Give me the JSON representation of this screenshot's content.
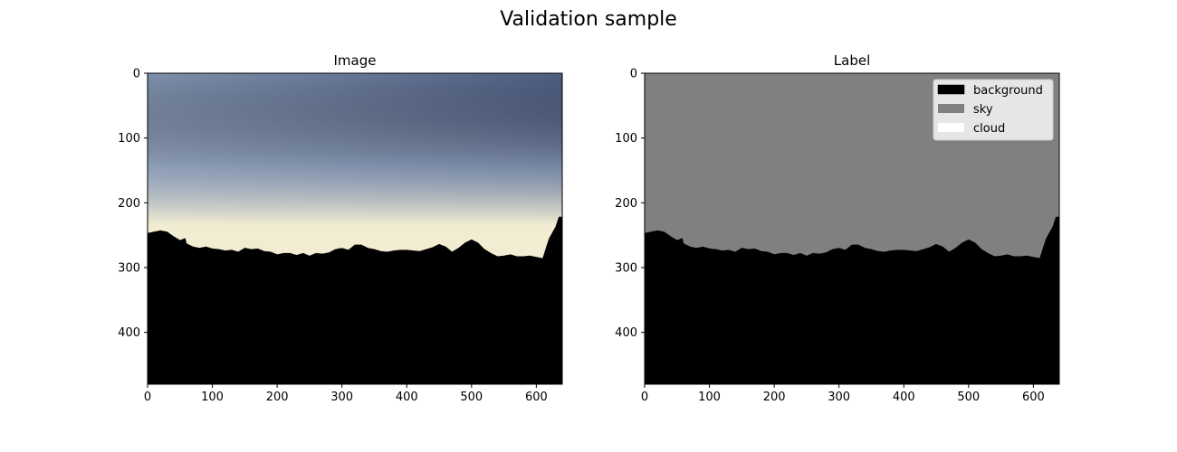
{
  "figure": {
    "title": "Validation sample"
  },
  "chart_data": [
    {
      "type": "heatmap",
      "title": "Image",
      "content": "photo",
      "x_ticks": [
        0,
        100,
        200,
        300,
        400,
        500,
        600
      ],
      "y_ticks": [
        0,
        100,
        200,
        300,
        400
      ],
      "xlim": [
        0,
        640
      ],
      "ylim": [
        480,
        0
      ],
      "colors": {
        "sky_top_left": "#7f90ac",
        "sky_top_right": "#4f5e82",
        "sky_mid": "#9aaac0",
        "horizon_glow": "#f2ecd2",
        "ground": "#000000"
      },
      "skyline_y": [
        [
          0,
          247
        ],
        [
          10,
          245
        ],
        [
          20,
          243
        ],
        [
          30,
          245
        ],
        [
          40,
          252
        ],
        [
          50,
          258
        ],
        [
          58,
          255
        ],
        [
          60,
          263
        ],
        [
          70,
          268
        ],
        [
          80,
          270
        ],
        [
          90,
          268
        ],
        [
          100,
          271
        ],
        [
          110,
          272
        ],
        [
          120,
          274
        ],
        [
          130,
          273
        ],
        [
          140,
          276
        ],
        [
          150,
          270
        ],
        [
          160,
          272
        ],
        [
          170,
          271
        ],
        [
          180,
          275
        ],
        [
          190,
          276
        ],
        [
          200,
          280
        ],
        [
          210,
          278
        ],
        [
          220,
          278
        ],
        [
          230,
          281
        ],
        [
          240,
          278
        ],
        [
          250,
          282
        ],
        [
          260,
          278
        ],
        [
          270,
          279
        ],
        [
          280,
          277
        ],
        [
          290,
          272
        ],
        [
          300,
          270
        ],
        [
          310,
          273
        ],
        [
          320,
          265
        ],
        [
          330,
          265
        ],
        [
          340,
          270
        ],
        [
          350,
          272
        ],
        [
          360,
          275
        ],
        [
          370,
          276
        ],
        [
          380,
          274
        ],
        [
          390,
          273
        ],
        [
          400,
          273
        ],
        [
          410,
          274
        ],
        [
          420,
          275
        ],
        [
          430,
          272
        ],
        [
          440,
          269
        ],
        [
          450,
          264
        ],
        [
          460,
          268
        ],
        [
          470,
          276
        ],
        [
          480,
          270
        ],
        [
          490,
          262
        ],
        [
          500,
          257
        ],
        [
          510,
          262
        ],
        [
          520,
          272
        ],
        [
          530,
          278
        ],
        [
          540,
          283
        ],
        [
          550,
          282
        ],
        [
          560,
          280
        ],
        [
          570,
          283
        ],
        [
          580,
          283
        ],
        [
          590,
          282
        ],
        [
          600,
          284
        ],
        [
          610,
          286
        ],
        [
          615,
          270
        ],
        [
          620,
          255
        ],
        [
          625,
          246
        ],
        [
          630,
          237
        ],
        [
          635,
          222
        ],
        [
          640,
          222
        ]
      ]
    },
    {
      "type": "heatmap",
      "title": "Label",
      "content": "segmentation",
      "x_ticks": [
        0,
        100,
        200,
        300,
        400,
        500,
        600
      ],
      "y_ticks": [
        0,
        100,
        200,
        300,
        400
      ],
      "xlim": [
        0,
        640
      ],
      "ylim": [
        480,
        0
      ],
      "classes": [
        {
          "name": "background",
          "color": "#000000"
        },
        {
          "name": "sky",
          "color": "#808080"
        },
        {
          "name": "cloud",
          "color": "#ffffff"
        }
      ],
      "legend_position": "top-right",
      "skyline_y": [
        [
          0,
          247
        ],
        [
          10,
          245
        ],
        [
          20,
          243
        ],
        [
          30,
          245
        ],
        [
          40,
          252
        ],
        [
          50,
          258
        ],
        [
          58,
          255
        ],
        [
          60,
          263
        ],
        [
          70,
          268
        ],
        [
          80,
          270
        ],
        [
          90,
          268
        ],
        [
          100,
          271
        ],
        [
          110,
          272
        ],
        [
          120,
          274
        ],
        [
          130,
          273
        ],
        [
          140,
          276
        ],
        [
          150,
          270
        ],
        [
          160,
          272
        ],
        [
          170,
          271
        ],
        [
          180,
          275
        ],
        [
          190,
          276
        ],
        [
          200,
          280
        ],
        [
          210,
          278
        ],
        [
          220,
          278
        ],
        [
          230,
          281
        ],
        [
          240,
          278
        ],
        [
          250,
          282
        ],
        [
          260,
          278
        ],
        [
          270,
          279
        ],
        [
          280,
          277
        ],
        [
          290,
          272
        ],
        [
          300,
          270
        ],
        [
          310,
          273
        ],
        [
          320,
          265
        ],
        [
          330,
          265
        ],
        [
          340,
          270
        ],
        [
          350,
          272
        ],
        [
          360,
          275
        ],
        [
          370,
          276
        ],
        [
          380,
          274
        ],
        [
          390,
          273
        ],
        [
          400,
          273
        ],
        [
          410,
          274
        ],
        [
          420,
          275
        ],
        [
          430,
          272
        ],
        [
          440,
          269
        ],
        [
          450,
          264
        ],
        [
          460,
          268
        ],
        [
          470,
          276
        ],
        [
          480,
          270
        ],
        [
          490,
          262
        ],
        [
          500,
          257
        ],
        [
          510,
          262
        ],
        [
          520,
          272
        ],
        [
          530,
          278
        ],
        [
          540,
          283
        ],
        [
          550,
          282
        ],
        [
          560,
          280
        ],
        [
          570,
          283
        ],
        [
          580,
          283
        ],
        [
          590,
          282
        ],
        [
          600,
          284
        ],
        [
          610,
          286
        ],
        [
          615,
          270
        ],
        [
          620,
          255
        ],
        [
          625,
          246
        ],
        [
          630,
          237
        ],
        [
          635,
          222
        ],
        [
          640,
          222
        ]
      ]
    }
  ]
}
